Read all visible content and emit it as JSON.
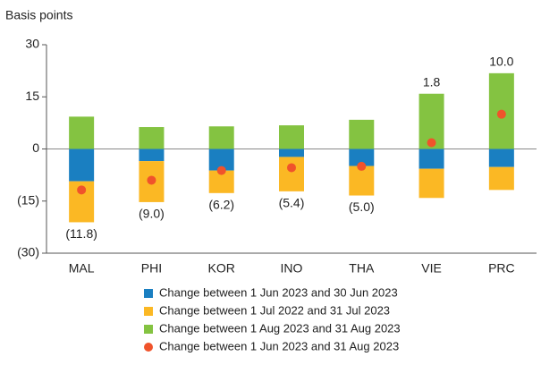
{
  "chart_data": {
    "type": "bar",
    "stacked": true,
    "ylabel": "Basis points",
    "categories": [
      "MAL",
      "PHI",
      "KOR",
      "INO",
      "THA",
      "VIE",
      "PRC"
    ],
    "ylim": [
      -30,
      30
    ],
    "yticks": [
      30,
      15,
      0,
      {
        "value": -15,
        "label": "(15)"
      },
      {
        "value": -30,
        "label": "(30)"
      }
    ],
    "series": [
      {
        "name": "Change between 1 Jun 2023 and 30 Jun 2023",
        "color": "#1a7fc1",
        "values": [
          -9.3,
          -3.5,
          -6.2,
          -2.3,
          -4.9,
          -5.7,
          -5.2
        ]
      },
      {
        "name": "Change between 1 Jul 2022 and 31 Jul 2023",
        "color": "#fbb824",
        "values": [
          -11.8,
          -11.8,
          -6.5,
          -9.9,
          -8.5,
          -8.4,
          -6.6
        ]
      },
      {
        "name": "Change between 1 Aug 2023 and 31 Aug 2023",
        "color": "#84c341",
        "values": [
          9.3,
          6.3,
          6.5,
          6.8,
          8.4,
          15.9,
          21.8
        ]
      },
      {
        "name": "Change between 1 Jun 2023 and 31 Aug 2023",
        "color": "#f0532b",
        "marker": "circle",
        "values": [
          -11.8,
          -9.0,
          -6.2,
          -5.4,
          -5.0,
          1.8,
          10.0
        ],
        "value_labels": [
          "(11.8)",
          "(9.0)",
          "(6.2)",
          "(5.4)",
          "(5.0)",
          "1.8",
          "10.0"
        ]
      }
    ]
  }
}
